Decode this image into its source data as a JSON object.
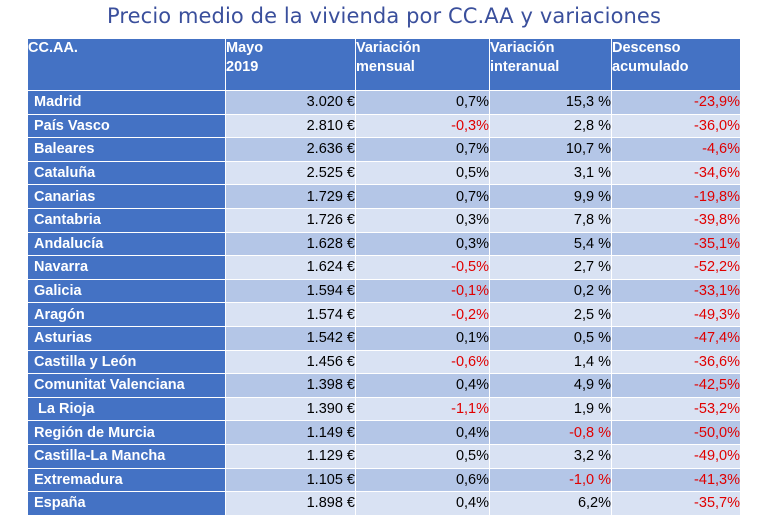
{
  "title": "Precio medio de la vivienda por CC.AA y variaciones",
  "headers": [
    "CC.AA.",
    "Mayo\n2019",
    "Variación\nmensual",
    "Variación\ninteranual",
    "Descenso\nacumulado"
  ],
  "colors": {
    "header_bg": "#4472c4",
    "row_band_dark": "#b4c6e7",
    "row_band_light": "#d9e2f3",
    "negative_text": "#e00000",
    "title_text": "#3a4f9c"
  },
  "rows": [
    {
      "region": "Madrid",
      "price": "3.020 €",
      "monthly": "0,7%",
      "monthly_neg": false,
      "yearly": "15,3 %",
      "yearly_neg": false,
      "cumulative": "-23,9%"
    },
    {
      "region": "País Vasco",
      "price": "2.810 €",
      "monthly": "-0,3%",
      "monthly_neg": true,
      "yearly": "2,8 %",
      "yearly_neg": false,
      "cumulative": "-36,0%"
    },
    {
      "region": "Baleares",
      "price": "2.636 €",
      "monthly": "0,7%",
      "monthly_neg": false,
      "yearly": "10,7 %",
      "yearly_neg": false,
      "cumulative": "-4,6%"
    },
    {
      "region": "Cataluña",
      "price": "2.525 €",
      "monthly": "0,5%",
      "monthly_neg": false,
      "yearly": "3,1 %",
      "yearly_neg": false,
      "cumulative": "-34,6%"
    },
    {
      "region": "Canarias",
      "price": "1.729 €",
      "monthly": "0,7%",
      "monthly_neg": false,
      "yearly": "9,9 %",
      "yearly_neg": false,
      "cumulative": "-19,8%"
    },
    {
      "region": "Cantabria",
      "price": "1.726 €",
      "monthly": "0,3%",
      "monthly_neg": false,
      "yearly": "7,8 %",
      "yearly_neg": false,
      "cumulative": "-39,8%"
    },
    {
      "region": "Andalucía",
      "price": "1.628 €",
      "monthly": "0,3%",
      "monthly_neg": false,
      "yearly": "5,4 %",
      "yearly_neg": false,
      "cumulative": "-35,1%"
    },
    {
      "region": "Navarra",
      "price": "1.624 €",
      "monthly": "-0,5%",
      "monthly_neg": true,
      "yearly": "2,7 %",
      "yearly_neg": false,
      "cumulative": "-52,2%"
    },
    {
      "region": "Galicia",
      "price": "1.594 €",
      "monthly": "-0,1%",
      "monthly_neg": true,
      "yearly": "0,2 %",
      "yearly_neg": false,
      "cumulative": "-33,1%"
    },
    {
      "region": "Aragón",
      "price": "1.574 €",
      "monthly": "-0,2%",
      "monthly_neg": true,
      "yearly": "2,5 %",
      "yearly_neg": false,
      "cumulative": "-49,3%"
    },
    {
      "region": "Asturias",
      "price": "1.542 €",
      "monthly": "0,1%",
      "monthly_neg": false,
      "yearly": "0,5 %",
      "yearly_neg": false,
      "cumulative": "-47,4%"
    },
    {
      "region": "Castilla y León",
      "price": "1.456 €",
      "monthly": "-0,6%",
      "monthly_neg": true,
      "yearly": "1,4 %",
      "yearly_neg": false,
      "cumulative": "-36,6%"
    },
    {
      "region": "Comunitat Valenciana",
      "price": "1.398 €",
      "monthly": "0,4%",
      "monthly_neg": false,
      "yearly": "4,9 %",
      "yearly_neg": false,
      "cumulative": "-42,5%"
    },
    {
      "region": " La Rioja",
      "price": "1.390 €",
      "monthly": "-1,1%",
      "monthly_neg": true,
      "yearly": "1,9 %",
      "yearly_neg": false,
      "cumulative": "-53,2%"
    },
    {
      "region": "Región de Murcia",
      "price": "1.149 €",
      "monthly": "0,4%",
      "monthly_neg": false,
      "yearly": "-0,8 %",
      "yearly_neg": true,
      "cumulative": "-50,0%"
    },
    {
      "region": "Castilla-La Mancha",
      "price": "1.129 €",
      "monthly": "0,5%",
      "monthly_neg": false,
      "yearly": "3,2 %",
      "yearly_neg": false,
      "cumulative": "-49,0%"
    },
    {
      "region": "Extremadura",
      "price": "1.105 €",
      "monthly": "0,6%",
      "monthly_neg": false,
      "yearly": "-1,0 %",
      "yearly_neg": true,
      "cumulative": "-41,3%"
    },
    {
      "region": "España",
      "price": "1.898 €",
      "monthly": "0,4%",
      "monthly_neg": false,
      "yearly": "6,2%",
      "yearly_neg": false,
      "cumulative": "-35,7%"
    }
  ]
}
